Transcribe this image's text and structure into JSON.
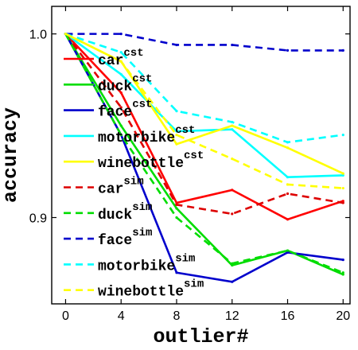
{
  "chart_data": {
    "type": "line",
    "xlabel": "outlier#",
    "ylabel": "accuracy",
    "x": [
      0,
      4,
      8,
      12,
      16,
      20
    ],
    "xlim": [
      -1,
      20.5
    ],
    "ylim": [
      0.853,
      1.015
    ],
    "xticks": [
      "0",
      "4",
      "8",
      "12",
      "16",
      "20"
    ],
    "yticks": [
      {
        "value": 0.9,
        "label": "0.9"
      },
      {
        "value": 1.0,
        "label": "1.0"
      }
    ],
    "legend_position": "left",
    "series": [
      {
        "name": "car",
        "sup": "cst",
        "color": "#ff0000",
        "dash": false,
        "values": [
          1.0,
          0.968,
          0.908,
          0.915,
          0.899,
          0.909
        ]
      },
      {
        "name": "duck",
        "sup": "cst",
        "color": "#00dd00",
        "dash": false,
        "values": [
          1.0,
          0.95,
          0.905,
          0.874,
          0.882,
          0.869
        ]
      },
      {
        "name": "face",
        "sup": "cst",
        "color": "#0000cc",
        "dash": false,
        "values": [
          1.0,
          0.945,
          0.87,
          0.865,
          0.881,
          0.877
        ]
      },
      {
        "name": "motorbike",
        "sup": "cst",
        "color": "#00ffff",
        "dash": false,
        "values": [
          1.0,
          0.978,
          0.947,
          0.948,
          0.922,
          0.923
        ]
      },
      {
        "name": "winebottle",
        "sup": "cst",
        "color": "#ffff00",
        "dash": false,
        "values": [
          1.0,
          0.985,
          0.94,
          0.95,
          0.938,
          0.924
        ]
      },
      {
        "name": "car",
        "sup": "sim",
        "color": "#dd0000",
        "dash": true,
        "values": [
          1.0,
          0.96,
          0.907,
          0.902,
          0.913,
          0.908
        ]
      },
      {
        "name": "duck",
        "sup": "sim",
        "color": "#00dd00",
        "dash": true,
        "values": [
          1.0,
          0.945,
          0.9,
          0.875,
          0.882,
          0.87
        ]
      },
      {
        "name": "face",
        "sup": "sim",
        "color": "#0000cc",
        "dash": true,
        "values": [
          1.0,
          1.0,
          0.994,
          0.994,
          0.991,
          0.991
        ]
      },
      {
        "name": "motorbike",
        "sup": "sim",
        "color": "#00ffff",
        "dash": true,
        "values": [
          1.0,
          0.99,
          0.958,
          0.952,
          0.941,
          0.945
        ]
      },
      {
        "name": "winebottle",
        "sup": "sim",
        "color": "#ffff00",
        "dash": true,
        "values": [
          1.0,
          0.985,
          0.945,
          0.932,
          0.918,
          0.916
        ]
      }
    ]
  }
}
